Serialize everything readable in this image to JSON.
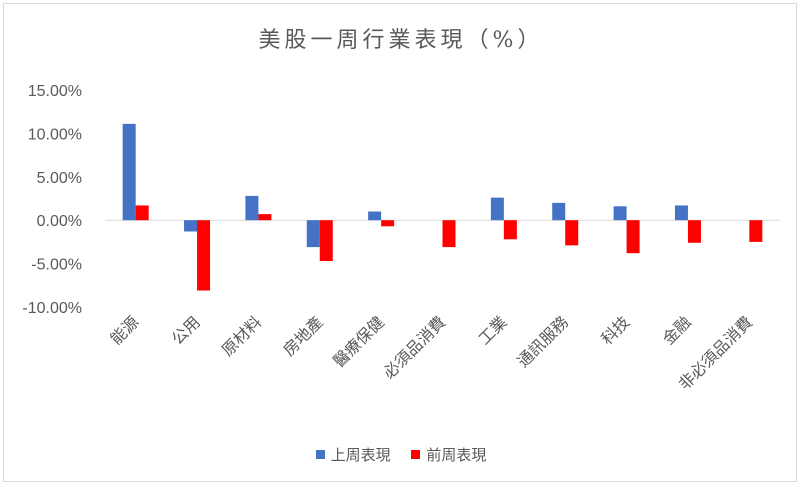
{
  "chart_data": {
    "type": "bar",
    "title": "美股一周行業表現（%）",
    "categories": [
      "能源",
      "公用",
      "原材料",
      "房地產",
      "醫療保健",
      "必須品消費",
      "工業",
      "通訊服務",
      "科技",
      "金融",
      "非必須品消費"
    ],
    "series": [
      {
        "name": "上周表現",
        "color": "#4472C4",
        "values": [
          11.1,
          -1.3,
          2.8,
          -3.1,
          1.0,
          0.0,
          2.6,
          2.0,
          1.6,
          1.7,
          0.0
        ]
      },
      {
        "name": "前周表現",
        "color": "#FF0000",
        "values": [
          1.7,
          -8.1,
          0.7,
          -4.7,
          -0.7,
          -3.1,
          -2.2,
          -2.9,
          -3.8,
          -2.6,
          -2.5
        ]
      }
    ],
    "yticks": [
      "15.00%",
      "10.00%",
      "5.00%",
      "0.00%",
      "-5.00%",
      "-10.00%"
    ],
    "ylim": [
      -10,
      15
    ],
    "grid": false,
    "legend_position": "bottom"
  }
}
